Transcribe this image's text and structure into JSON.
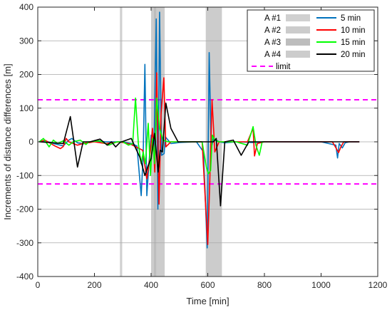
{
  "chart_data": {
    "type": "line",
    "xlabel": "Time [min]",
    "ylabel": "Increments of distance differences [m]",
    "xlim": [
      0,
      1200
    ],
    "ylim": [
      -400,
      400
    ],
    "xticks": [
      0,
      200,
      400,
      600,
      800,
      1000,
      1200
    ],
    "yticks": [
      -400,
      -300,
      -200,
      -100,
      0,
      100,
      200,
      300,
      400
    ],
    "grid": "horizontal",
    "legend_placement": "top-right",
    "limit": {
      "name": "limit",
      "value": 125,
      "color": "#ff00ff",
      "style": "dashed"
    },
    "shaded_areas": [
      {
        "name": "A #1",
        "x0": 290,
        "x1": 298,
        "color": "#d0d0d0"
      },
      {
        "name": "A #2",
        "x0": 400,
        "x1": 448,
        "color": "#cccccc"
      },
      {
        "name": "A #3",
        "x0": 410,
        "x1": 418,
        "color": "#bdbdbd"
      },
      {
        "name": "A #4",
        "x0": 593,
        "x1": 650,
        "color": "#cccccc"
      }
    ],
    "series": [
      {
        "name": "5 min",
        "color": "#0072bd",
        "points": [
          [
            5,
            0
          ],
          [
            30,
            2
          ],
          [
            60,
            -6
          ],
          [
            90,
            -12
          ],
          [
            110,
            5
          ],
          [
            120,
            10
          ],
          [
            140,
            -3
          ],
          [
            160,
            -6
          ],
          [
            200,
            2
          ],
          [
            240,
            0
          ],
          [
            300,
            0
          ],
          [
            330,
            -5
          ],
          [
            350,
            -12
          ],
          [
            365,
            -160
          ],
          [
            372,
            -40
          ],
          [
            378,
            230
          ],
          [
            385,
            -160
          ],
          [
            392,
            -70
          ],
          [
            400,
            20
          ],
          [
            410,
            -30
          ],
          [
            418,
            365
          ],
          [
            424,
            -200
          ],
          [
            430,
            385
          ],
          [
            437,
            -40
          ],
          [
            446,
            -35
          ],
          [
            450,
            15
          ],
          [
            470,
            -5
          ],
          [
            500,
            -2
          ],
          [
            560,
            0
          ],
          [
            585,
            -30
          ],
          [
            598,
            -315
          ],
          [
            605,
            265
          ],
          [
            612,
            -20
          ],
          [
            620,
            10
          ],
          [
            640,
            0
          ],
          [
            660,
            -3
          ],
          [
            700,
            0
          ],
          [
            760,
            -2
          ],
          [
            800,
            0
          ],
          [
            1000,
            0
          ],
          [
            1052,
            -10
          ],
          [
            1058,
            -48
          ],
          [
            1064,
            -5
          ],
          [
            1075,
            -18
          ],
          [
            1085,
            -3
          ],
          [
            1100,
            0
          ],
          [
            1135,
            0
          ]
        ]
      },
      {
        "name": "10 min",
        "color": "#ff0000",
        "points": [
          [
            5,
            0
          ],
          [
            25,
            5
          ],
          [
            60,
            -12
          ],
          [
            80,
            -20
          ],
          [
            90,
            -14
          ],
          [
            100,
            10
          ],
          [
            110,
            0
          ],
          [
            140,
            -10
          ],
          [
            160,
            -5
          ],
          [
            200,
            0
          ],
          [
            240,
            -5
          ],
          [
            290,
            0
          ],
          [
            330,
            -8
          ],
          [
            370,
            -25
          ],
          [
            385,
            -110
          ],
          [
            395,
            -50
          ],
          [
            405,
            40
          ],
          [
            413,
            -90
          ],
          [
            420,
            205
          ],
          [
            428,
            -185
          ],
          [
            435,
            80
          ],
          [
            445,
            190
          ],
          [
            452,
            -15
          ],
          [
            470,
            0
          ],
          [
            500,
            0
          ],
          [
            580,
            0
          ],
          [
            600,
            -305
          ],
          [
            607,
            -120
          ],
          [
            615,
            125
          ],
          [
            625,
            -30
          ],
          [
            640,
            0
          ],
          [
            680,
            0
          ],
          [
            740,
            0
          ],
          [
            760,
            40
          ],
          [
            765,
            -42
          ],
          [
            775,
            -5
          ],
          [
            800,
            0
          ],
          [
            1040,
            0
          ],
          [
            1062,
            -32
          ],
          [
            1070,
            -15
          ],
          [
            1080,
            0
          ],
          [
            1135,
            0
          ]
        ]
      },
      {
        "name": "15 min",
        "color": "#00ff00",
        "points": [
          [
            5,
            0
          ],
          [
            20,
            10
          ],
          [
            40,
            -15
          ],
          [
            55,
            5
          ],
          [
            70,
            -5
          ],
          [
            90,
            3
          ],
          [
            110,
            -10
          ],
          [
            125,
            0
          ],
          [
            150,
            5
          ],
          [
            170,
            -8
          ],
          [
            180,
            0
          ],
          [
            220,
            3
          ],
          [
            250,
            -10
          ],
          [
            265,
            -5
          ],
          [
            280,
            0
          ],
          [
            300,
            0
          ],
          [
            320,
            -10
          ],
          [
            335,
            -5
          ],
          [
            345,
            130
          ],
          [
            355,
            -5
          ],
          [
            365,
            -65
          ],
          [
            372,
            -30
          ],
          [
            380,
            -65
          ],
          [
            390,
            55
          ],
          [
            398,
            -100
          ],
          [
            405,
            10
          ],
          [
            412,
            -65
          ],
          [
            420,
            130
          ],
          [
            430,
            40
          ],
          [
            442,
            5
          ],
          [
            460,
            0
          ],
          [
            580,
            0
          ],
          [
            595,
            -75
          ],
          [
            602,
            -95
          ],
          [
            610,
            -85
          ],
          [
            616,
            20
          ],
          [
            625,
            5
          ],
          [
            640,
            0
          ],
          [
            700,
            0
          ],
          [
            740,
            -10
          ],
          [
            760,
            45
          ],
          [
            770,
            -10
          ],
          [
            782,
            -40
          ],
          [
            792,
            0
          ],
          [
            800,
            0
          ]
        ]
      },
      {
        "name": "20 min",
        "color": "#000000",
        "points": [
          [
            5,
            0
          ],
          [
            90,
            -5
          ],
          [
            115,
            75
          ],
          [
            140,
            -75
          ],
          [
            160,
            0
          ],
          [
            185,
            0
          ],
          [
            220,
            8
          ],
          [
            245,
            -10
          ],
          [
            260,
            0
          ],
          [
            275,
            -15
          ],
          [
            290,
            -2
          ],
          [
            330,
            10
          ],
          [
            345,
            -18
          ],
          [
            360,
            -45
          ],
          [
            378,
            -100
          ],
          [
            390,
            -70
          ],
          [
            400,
            -50
          ],
          [
            412,
            25
          ],
          [
            425,
            -90
          ],
          [
            432,
            -25
          ],
          [
            440,
            -30
          ],
          [
            452,
            115
          ],
          [
            470,
            40
          ],
          [
            495,
            0
          ],
          [
            580,
            0
          ],
          [
            620,
            0
          ],
          [
            630,
            10
          ],
          [
            645,
            -190
          ],
          [
            660,
            0
          ],
          [
            690,
            5
          ],
          [
            718,
            -40
          ],
          [
            745,
            0
          ],
          [
            800,
            0
          ],
          [
            1135,
            0
          ]
        ]
      }
    ]
  }
}
